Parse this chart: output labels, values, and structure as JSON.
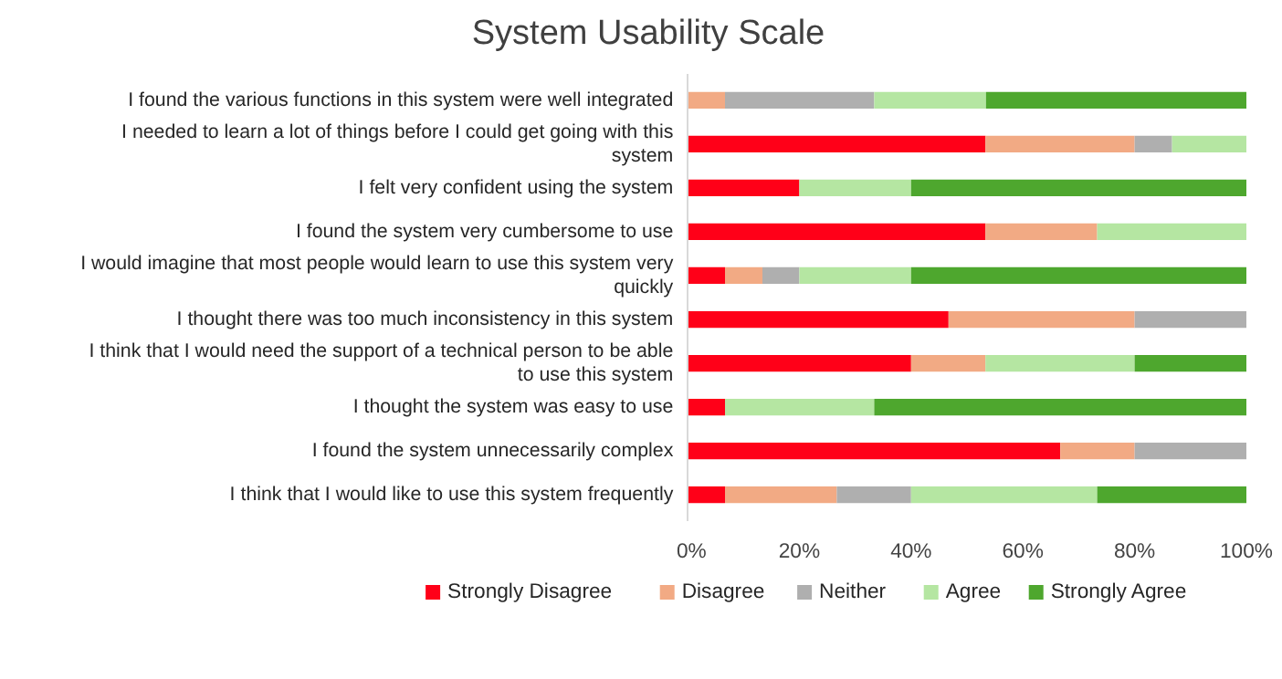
{
  "chart_data": {
    "type": "bar",
    "orientation": "horizontal",
    "stacked": true,
    "title": "System Usability Scale",
    "categories": [
      "I found the various functions in this system were well integrated",
      "I needed to learn a lot of things before I could get going with this system",
      "I felt very confident using the system",
      "I found the system very cumbersome to use",
      "I would imagine that most people would learn to use this system very quickly",
      "I thought there was too much inconsistency in this system",
      "I think that I would need the support of a technical person to be able to use this system",
      "I thought the system was easy to use",
      "I found the system unnecessarily complex",
      "I think that I would like to use this system frequently"
    ],
    "series": [
      {
        "name": "Strongly Disagree",
        "color": "#ff0018",
        "values": [
          0,
          53.3,
          20,
          53.3,
          6.7,
          46.7,
          40,
          6.7,
          66.7,
          6.7
        ]
      },
      {
        "name": "Disagree",
        "color": "#f2aa84",
        "values": [
          6.7,
          26.7,
          0,
          20,
          6.7,
          33.3,
          13.3,
          0,
          13.3,
          20
        ]
      },
      {
        "name": "Neither",
        "color": "#afafaf",
        "values": [
          26.7,
          6.7,
          0,
          0,
          6.6,
          20,
          0,
          0,
          20,
          13.3
        ]
      },
      {
        "name": "Agree",
        "color": "#b5e6a2",
        "values": [
          20,
          13.3,
          20,
          26.7,
          20,
          0,
          26.7,
          26.7,
          0,
          33.3
        ]
      },
      {
        "name": "Strongly Agree",
        "color": "#4ea72e",
        "values": [
          46.6,
          0,
          60,
          0,
          60,
          0,
          20,
          66.6,
          0,
          26.7
        ]
      }
    ],
    "xlim": [
      0,
      100
    ],
    "xticks": [
      {
        "value": 0,
        "label": "0%"
      },
      {
        "value": 20,
        "label": "20%"
      },
      {
        "value": 40,
        "label": "40%"
      },
      {
        "value": 60,
        "label": "60%"
      },
      {
        "value": 80,
        "label": "80%"
      },
      {
        "value": 100,
        "label": "100%"
      }
    ],
    "legend": "bottom"
  }
}
